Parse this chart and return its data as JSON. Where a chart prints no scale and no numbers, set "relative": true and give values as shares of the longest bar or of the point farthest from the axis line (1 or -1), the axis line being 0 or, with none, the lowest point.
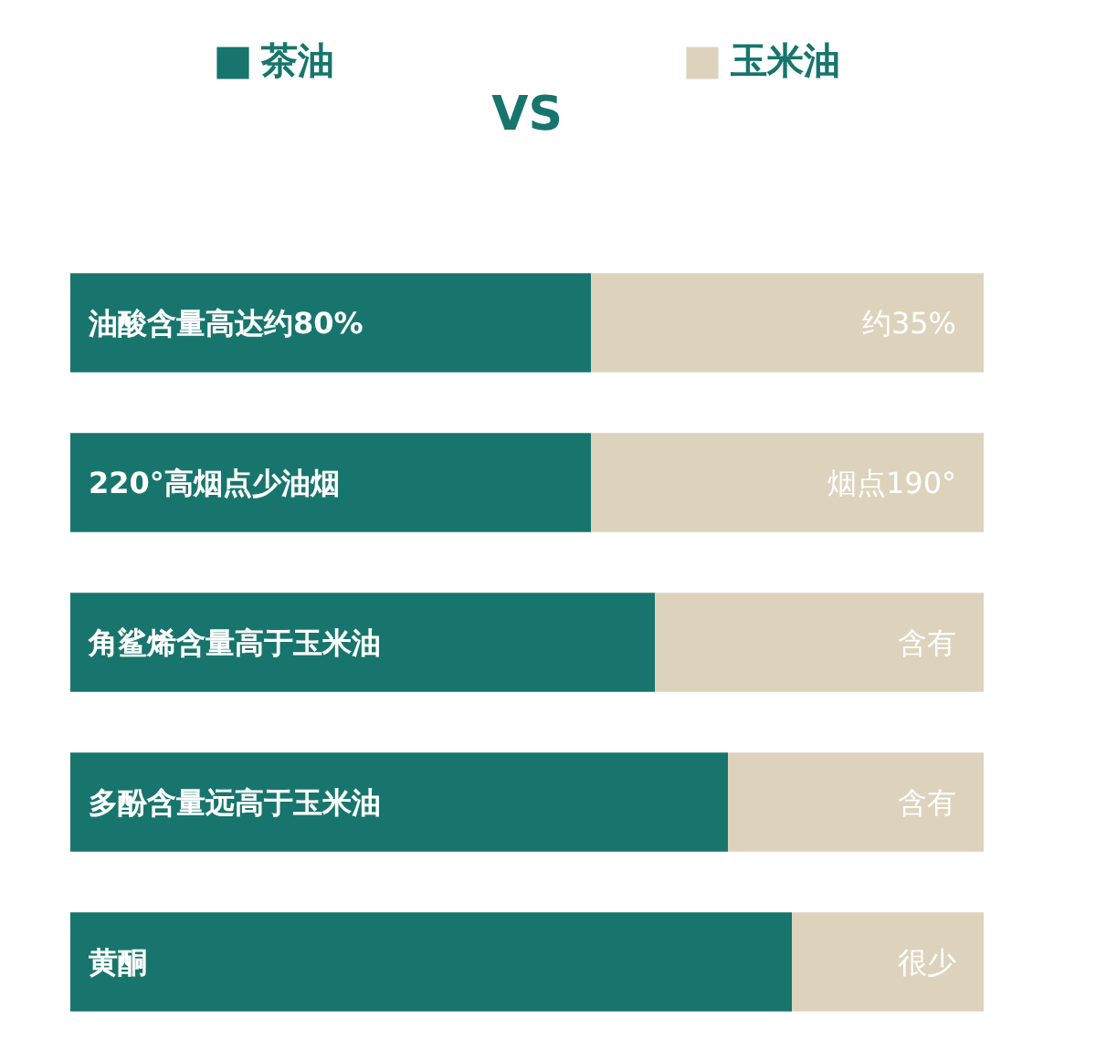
{
  "chart_data": {
    "type": "bar",
    "orientation": "horizontal",
    "stacked": true,
    "relative": true,
    "categories": [
      "油酸含量高达约80%",
      "220°高烟点少油烟",
      "角鲨烯含量高于玉米油",
      "多酚含量远高于玉米油",
      "黄酮"
    ],
    "series": [
      {
        "name": "茶油",
        "color": "#17756d",
        "values": [
          0.57,
          0.57,
          0.64,
          0.72,
          0.79
        ]
      },
      {
        "name": "玉米油",
        "color": "#ddd3bd",
        "values": [
          0.43,
          0.43,
          0.36,
          0.28,
          0.21
        ]
      }
    ],
    "annotations": [
      "VS",
      "约35%",
      "烟点190°",
      "含有",
      "含有",
      "很少"
    ],
    "legend": "top",
    "grid": false
  }
}
